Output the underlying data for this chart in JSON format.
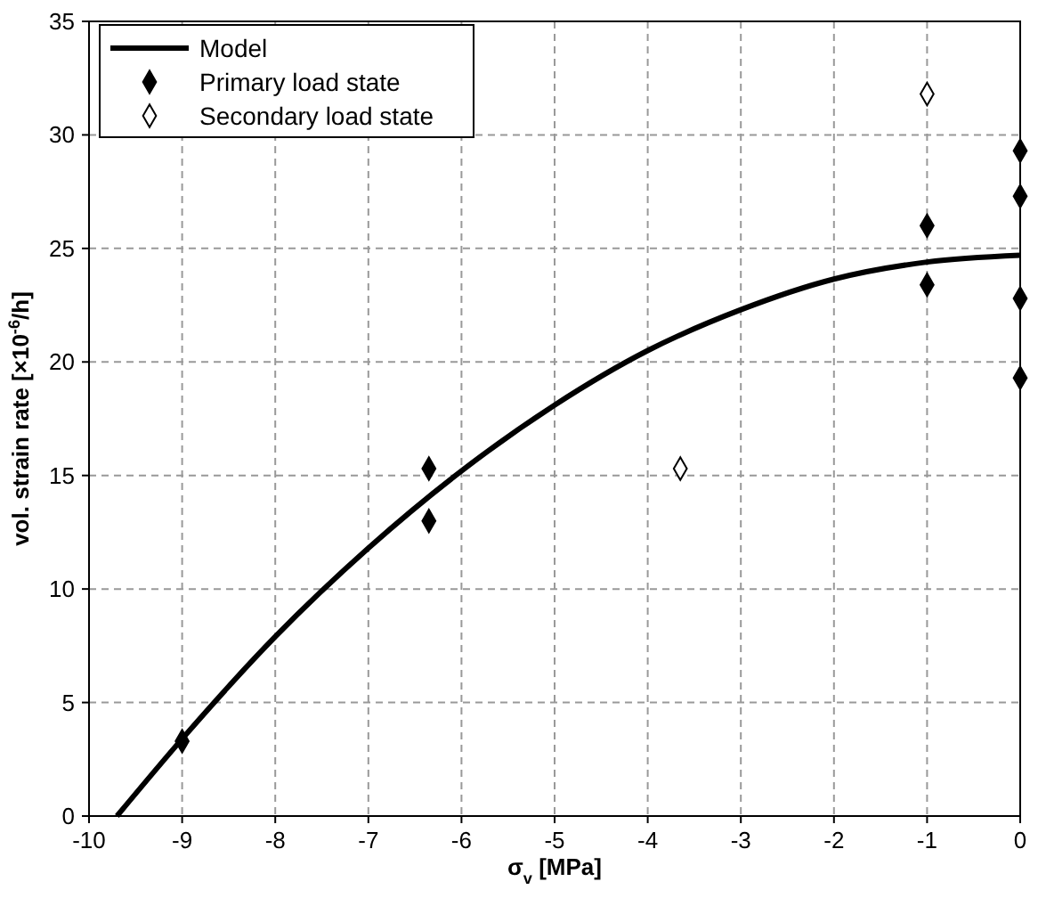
{
  "chart_data": {
    "type": "scatter",
    "xlabel": "σ$_{v}$ [MPa]",
    "ylabel": "vol. strain rate [×10$^{-6}$/h]",
    "xlim": [
      -10,
      0
    ],
    "xticks": [
      -10,
      -9,
      -8,
      -7,
      -6,
      -5,
      -4,
      -3,
      -2,
      -1,
      0
    ],
    "ylim": [
      0,
      35
    ],
    "yticks": [
      0,
      5,
      10,
      15,
      20,
      25,
      30,
      35
    ],
    "grid": true,
    "legend": "top left",
    "series": [
      {
        "name": "Model",
        "type": "line",
        "color": "#000000",
        "marker": "none",
        "line_style": "solid",
        "x": [
          -9.7,
          -9,
          -8,
          -7,
          -6,
          -5,
          -4,
          -3,
          -2,
          -1,
          0
        ],
        "values": [
          0,
          3.4,
          7.9,
          11.8,
          15.2,
          18.1,
          20.5,
          22.3,
          23.65,
          24.4,
          24.7
        ]
      },
      {
        "name": "Primary load state",
        "color": "#000000",
        "marker": "diamond",
        "x": [
          -9,
          -6.35,
          -6.35,
          -1,
          -1,
          0,
          0,
          0,
          0
        ],
        "values": [
          3.3,
          15.3,
          13.0,
          26.0,
          23.4,
          29.3,
          27.3,
          22.8,
          19.3
        ]
      },
      {
        "name": "Secondary load state",
        "color": "#ffffff",
        "marker": "diamond",
        "x": [
          -1,
          -3.65
        ],
        "values": [
          31.8,
          15.3
        ]
      }
    ]
  }
}
